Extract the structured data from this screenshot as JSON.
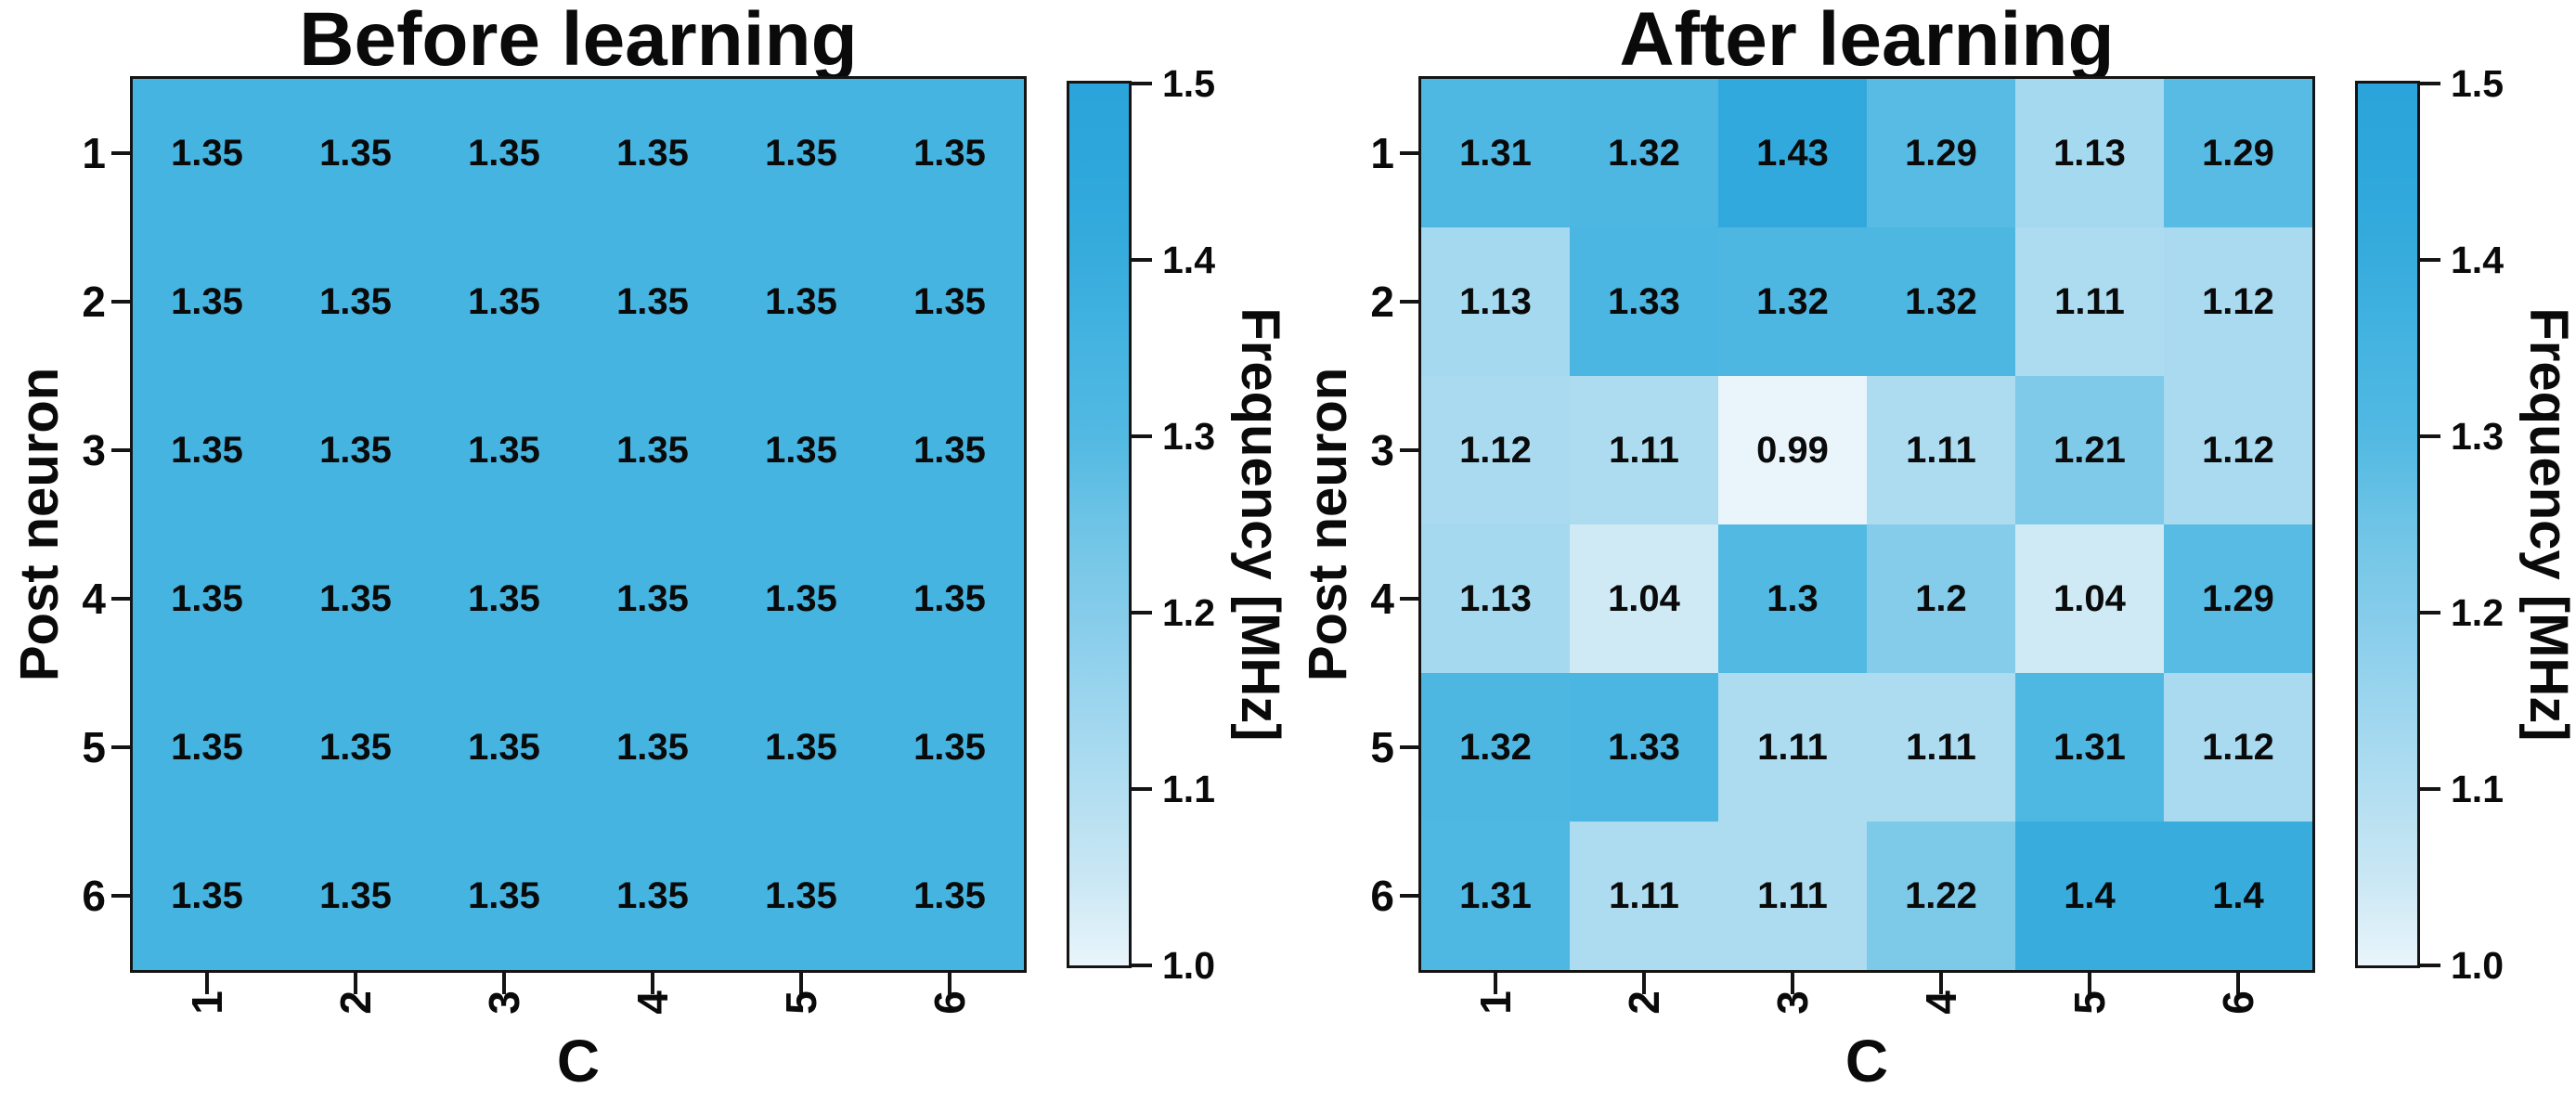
{
  "figure": {
    "background": "#ffffff",
    "text_color": "#0a0a0a",
    "frame_color": "#141414"
  },
  "colorbar": {
    "label": "Frequency [MHz]",
    "ticks": [
      "1.5",
      "1.4",
      "1.3",
      "1.2",
      "1.1",
      "1.0"
    ],
    "vmin": 1.0,
    "vmax": 1.5,
    "stops": [
      [
        1.0,
        "#e9f5fb"
      ],
      [
        1.05,
        "#c9e7f4"
      ],
      [
        1.1,
        "#b2def1"
      ],
      [
        1.15,
        "#9bd5ee"
      ],
      [
        1.2,
        "#85ccea"
      ],
      [
        1.25,
        "#6ec4e6"
      ],
      [
        1.3,
        "#52b9e2"
      ],
      [
        1.35,
        "#45b4e1"
      ],
      [
        1.4,
        "#37acdd"
      ],
      [
        1.45,
        "#2ea7db"
      ],
      [
        1.5,
        "#2aa4da"
      ]
    ]
  },
  "chart_data": [
    {
      "type": "heatmap",
      "title": "Before learning",
      "xlabel": "C",
      "ylabel": "Post neuron",
      "x": [
        "1",
        "2",
        "3",
        "4",
        "5",
        "6"
      ],
      "y": [
        "1",
        "2",
        "3",
        "4",
        "5",
        "6"
      ],
      "vmin": 1.0,
      "vmax": 1.5,
      "colorbar_label": "Frequency [MHz]",
      "values": [
        [
          1.35,
          1.35,
          1.35,
          1.35,
          1.35,
          1.35
        ],
        [
          1.35,
          1.35,
          1.35,
          1.35,
          1.35,
          1.35
        ],
        [
          1.35,
          1.35,
          1.35,
          1.35,
          1.35,
          1.35
        ],
        [
          1.35,
          1.35,
          1.35,
          1.35,
          1.35,
          1.35
        ],
        [
          1.35,
          1.35,
          1.35,
          1.35,
          1.35,
          1.35
        ],
        [
          1.35,
          1.35,
          1.35,
          1.35,
          1.35,
          1.35
        ]
      ]
    },
    {
      "type": "heatmap",
      "title": "After learning",
      "xlabel": "C",
      "ylabel": "Post neuron",
      "x": [
        "1",
        "2",
        "3",
        "4",
        "5",
        "6"
      ],
      "y": [
        "1",
        "2",
        "3",
        "4",
        "5",
        "6"
      ],
      "vmin": 1.0,
      "vmax": 1.5,
      "colorbar_label": "Frequency [MHz]",
      "values": [
        [
          1.31,
          1.32,
          1.43,
          1.29,
          1.13,
          1.29
        ],
        [
          1.13,
          1.33,
          1.32,
          1.32,
          1.11,
          1.12
        ],
        [
          1.12,
          1.11,
          0.99,
          1.11,
          1.21,
          1.12
        ],
        [
          1.13,
          1.04,
          1.3,
          1.2,
          1.04,
          1.29
        ],
        [
          1.32,
          1.33,
          1.11,
          1.11,
          1.31,
          1.12
        ],
        [
          1.31,
          1.11,
          1.11,
          1.22,
          1.4,
          1.4
        ]
      ]
    }
  ]
}
